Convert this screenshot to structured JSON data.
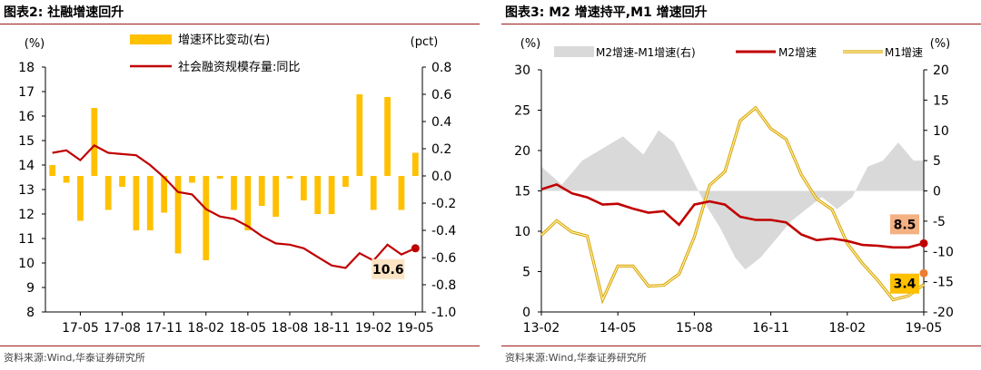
{
  "panels": [
    {
      "title": "图表2:  社融增速回升",
      "source": "资料来源:Wind,华泰证券研究所"
    },
    {
      "title": "图表3:  M2 增速持平,M1 增速回升",
      "source": "资料来源:Wind,华泰证券研究所"
    }
  ],
  "colors": {
    "dark_red": "#c00000",
    "gold": "#ffc000",
    "gray": "#d9d9d9",
    "rule": "#9b1b1b"
  },
  "chart_data": [
    {
      "type": "bar+line",
      "title": "",
      "y_left_label": "(%)",
      "y_right_label": "(pct)",
      "ylim_left": [
        8,
        18
      ],
      "ylim_right": [
        -1.0,
        0.8
      ],
      "yticks_left": [
        "8",
        "9",
        "10",
        "11",
        "12",
        "13",
        "14",
        "15",
        "16",
        "17",
        "18"
      ],
      "yticks_right": [
        "-1.0",
        "-0.8",
        "-0.6",
        "-0.4",
        "-0.2",
        "0.0",
        "0.2",
        "0.4",
        "0.6",
        "0.8"
      ],
      "x_ticks": [
        "17-05",
        "17-08",
        "17-11",
        "18-02",
        "18-05",
        "18-08",
        "18-11",
        "19-02",
        "19-05"
      ],
      "months": [
        "17-03",
        "17-04",
        "17-05",
        "17-06",
        "17-07",
        "17-08",
        "17-09",
        "17-10",
        "17-11",
        "17-12",
        "18-01",
        "18-02",
        "18-03",
        "18-04",
        "18-05",
        "18-06",
        "18-07",
        "18-08",
        "18-09",
        "18-10",
        "18-11",
        "18-12",
        "19-01",
        "19-02",
        "19-03",
        "19-04",
        "19-05"
      ],
      "legend": [
        "增速环比变动(右)",
        "社会融资规模存量:同比"
      ],
      "series": [
        {
          "name": "增速环比变动(右)",
          "type": "bar",
          "axis": "right",
          "values": [
            0.08,
            -0.05,
            -0.33,
            0.5,
            -0.25,
            -0.08,
            -0.4,
            -0.4,
            -0.27,
            -0.57,
            -0.05,
            -0.62,
            -0.02,
            -0.25,
            -0.4,
            -0.22,
            -0.3,
            -0.02,
            -0.18,
            -0.28,
            -0.28,
            -0.08,
            0.6,
            -0.25,
            0.58,
            -0.25,
            0.17
          ]
        },
        {
          "name": "社会融资规模存量:同比",
          "type": "line",
          "axis": "left",
          "values": [
            14.5,
            14.6,
            14.2,
            14.8,
            14.5,
            14.45,
            14.4,
            14.0,
            13.5,
            12.9,
            12.8,
            12.2,
            11.9,
            11.8,
            11.5,
            11.1,
            10.8,
            10.75,
            10.6,
            10.25,
            9.9,
            9.8,
            10.4,
            10.1,
            10.75,
            10.35,
            10.6
          ]
        }
      ],
      "annotation": {
        "label": "10.6",
        "month": "19-05",
        "value": 10.6
      }
    },
    {
      "type": "area+line",
      "title": "",
      "y_left_label": "(%)",
      "y_right_label": "(%)",
      "ylim_left": [
        0,
        30
      ],
      "ylim_right": [
        -20,
        20
      ],
      "yticks_left": [
        "0",
        "5",
        "10",
        "15",
        "20",
        "25",
        "30"
      ],
      "yticks_right": [
        "-20",
        "-15",
        "-10",
        "-5",
        "0",
        "5",
        "10",
        "15",
        "20"
      ],
      "x_range": [
        "13-02",
        "19-05"
      ],
      "x_ticks": [
        "13-02",
        "14-05",
        "15-08",
        "16-11",
        "18-02",
        "19-05"
      ],
      "legend": [
        "M2增速-M1增速(右)",
        "M2增速",
        "M1增速"
      ],
      "series": [
        {
          "name": "M2增速-M1增速(右)",
          "type": "area",
          "axis": "right",
          "x": [
            "13-02",
            "13-06",
            "13-10",
            "14-02",
            "14-06",
            "14-10",
            "15-01",
            "15-04",
            "15-07",
            "15-10",
            "16-01",
            "16-04",
            "16-06",
            "16-09",
            "16-12",
            "17-03",
            "17-06",
            "17-09",
            "17-12",
            "18-03",
            "18-06",
            "18-09",
            "18-12",
            "19-03",
            "19-05"
          ],
          "values": [
            4,
            1,
            5,
            7,
            9,
            6,
            10,
            8,
            3,
            -2,
            -6,
            -11,
            -13,
            -11,
            -8,
            -5,
            -3,
            -1,
            -3,
            -1,
            4,
            5,
            8,
            5,
            5
          ]
        },
        {
          "name": "M2增速",
          "type": "line",
          "axis": "left",
          "x": [
            "13-02",
            "13-05",
            "13-08",
            "13-11",
            "14-02",
            "14-05",
            "14-08",
            "14-11",
            "15-02",
            "15-05",
            "15-08",
            "15-11",
            "16-02",
            "16-05",
            "16-08",
            "16-11",
            "17-02",
            "17-05",
            "17-08",
            "17-11",
            "18-02",
            "18-05",
            "18-08",
            "18-11",
            "19-02",
            "19-05"
          ],
          "values": [
            15.2,
            15.8,
            14.7,
            14.2,
            13.3,
            13.4,
            12.8,
            12.3,
            12.5,
            10.8,
            13.3,
            13.7,
            13.3,
            11.8,
            11.4,
            11.4,
            11.1,
            9.6,
            8.9,
            9.1,
            8.8,
            8.3,
            8.2,
            8.0,
            8.0,
            8.5
          ]
        },
        {
          "name": "M1增速",
          "type": "line",
          "axis": "left",
          "x": [
            "13-02",
            "13-05",
            "13-08",
            "13-11",
            "14-02",
            "14-05",
            "14-08",
            "14-11",
            "15-02",
            "15-05",
            "15-08",
            "15-11",
            "16-02",
            "16-05",
            "16-08",
            "16-11",
            "17-02",
            "17-05",
            "17-08",
            "17-11",
            "18-02",
            "18-05",
            "18-08",
            "18-11",
            "19-02",
            "19-05"
          ],
          "values": [
            9.5,
            11.3,
            9.9,
            9.4,
            1.5,
            5.7,
            5.7,
            3.2,
            3.3,
            4.7,
            9.3,
            15.7,
            17.4,
            23.7,
            25.3,
            22.7,
            21.4,
            17.0,
            14.0,
            12.7,
            8.5,
            6.0,
            3.9,
            1.5,
            2.0,
            3.4
          ]
        }
      ],
      "annotations": [
        {
          "label": "8.5",
          "series": "M2增速",
          "x": "19-05",
          "value": 8.5
        },
        {
          "label": "3.4",
          "series": "M1增速",
          "x": "19-05",
          "value": 3.4
        }
      ]
    }
  ]
}
